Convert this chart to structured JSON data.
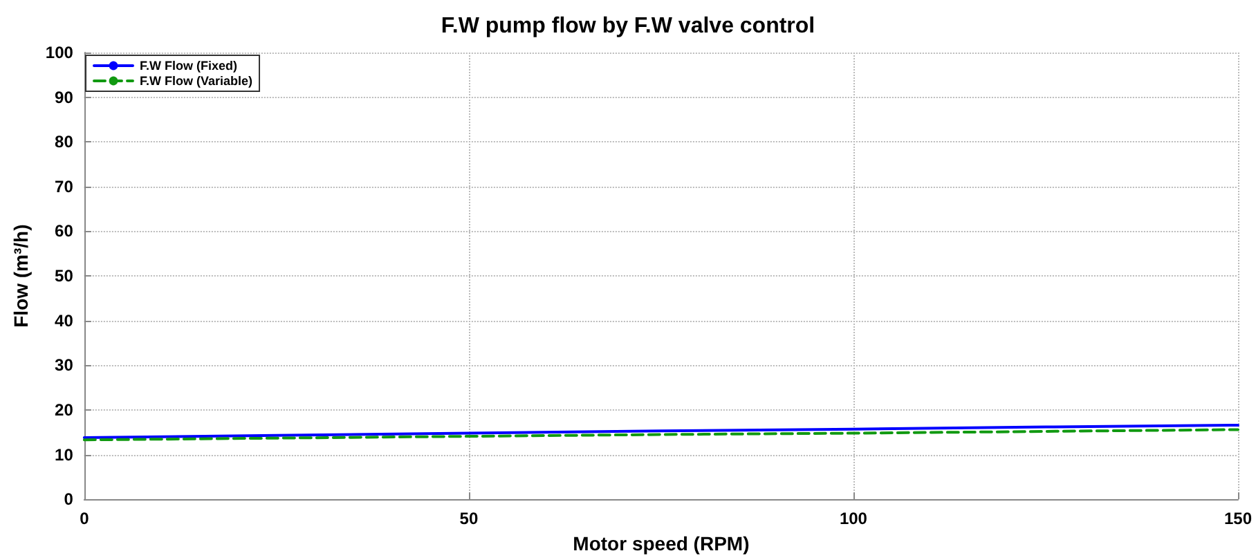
{
  "chart_data": {
    "type": "line",
    "title": "F.W pump flow by F.W valve control",
    "xlabel": "Motor speed (RPM)",
    "ylabel": "Flow (m³/h)",
    "x": [
      0,
      25,
      50,
      75,
      100,
      125,
      150
    ],
    "series": [
      {
        "name": "F.W Flow (Fixed)",
        "color": "#0000ff",
        "line_style": "solid",
        "values": [
          13.8,
          14.3,
          14.8,
          15.3,
          15.7,
          16.2,
          16.6
        ]
      },
      {
        "name": "F.W Flow (Variable)",
        "color": "#119911",
        "line_style": "dashed",
        "values": [
          13.3,
          13.7,
          14.1,
          14.5,
          14.8,
          15.2,
          15.6
        ]
      }
    ],
    "xlim": [
      0,
      150
    ],
    "xticks": [
      0,
      50,
      100,
      150
    ],
    "ylim": [
      0,
      100
    ],
    "yticks": [
      0,
      10,
      20,
      30,
      40,
      50,
      60,
      70,
      80,
      90,
      100
    ],
    "grid": true,
    "legend": "top left",
    "marker": "none"
  }
}
